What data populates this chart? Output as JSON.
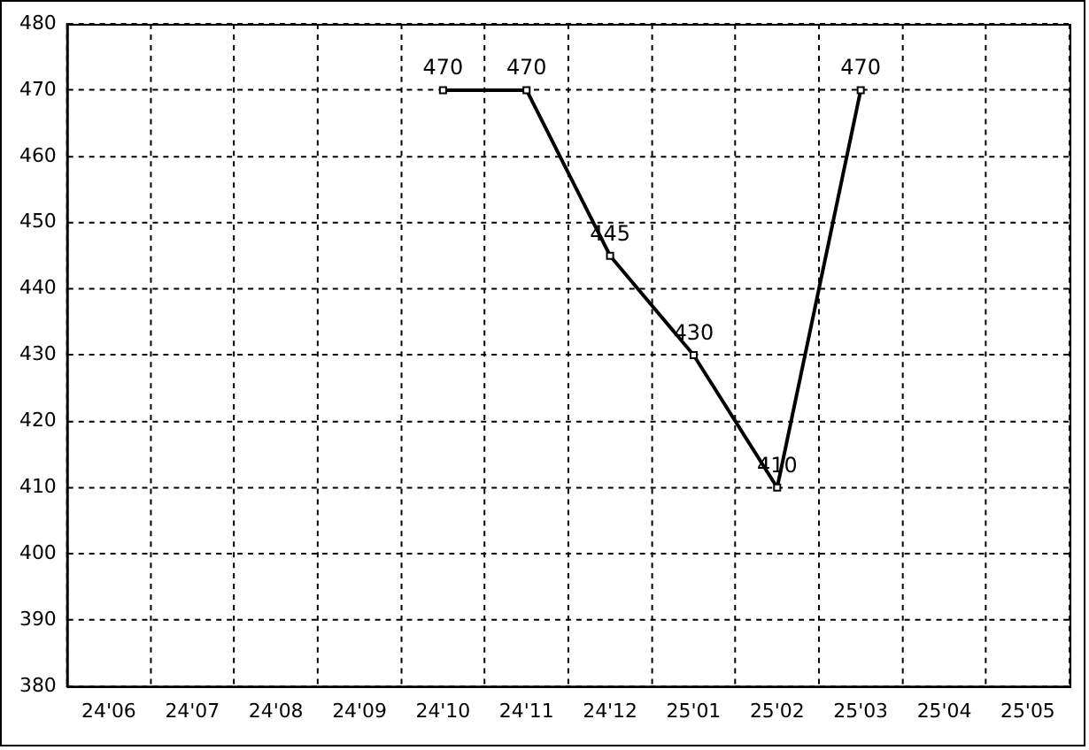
{
  "chart_data": {
    "type": "line",
    "categories": [
      "24'06",
      "24'07",
      "24'08",
      "24'09",
      "24'10",
      "24'11",
      "24'12",
      "25'01",
      "25'02",
      "25'03",
      "25'04",
      "25'05"
    ],
    "values": [
      null,
      null,
      null,
      null,
      470,
      470,
      445,
      430,
      410,
      470,
      null,
      null
    ],
    "color": "#000000",
    "ylim": [
      380,
      480
    ],
    "yticks": [
      380,
      390,
      400,
      410,
      420,
      430,
      440,
      450,
      460,
      470,
      480
    ],
    "grid": true,
    "legend": false,
    "marker": "square",
    "line_style": "solid",
    "data_labels": true
  }
}
